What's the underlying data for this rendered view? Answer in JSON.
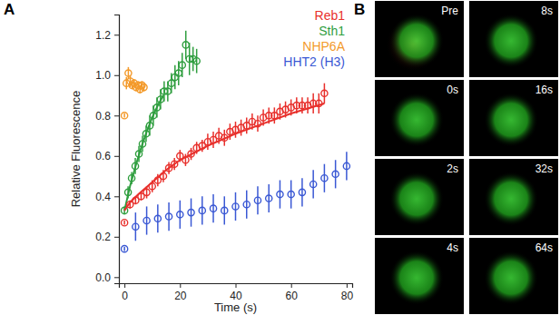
{
  "chart_data": {
    "type": "scatter",
    "panel_label": "A",
    "x_label": "Time (s)",
    "y_label": "Relative Fluorescence",
    "xlim": [
      -2,
      82
    ],
    "ylim": [
      -0.03,
      1.3
    ],
    "xticks": [
      0,
      20,
      40,
      60,
      80
    ],
    "yticks": [
      {
        "value": 0,
        "label": "0.0"
      },
      0.2,
      0.4,
      0.6,
      0.8,
      {
        "value": 1,
        "label": "1.0"
      },
      1.2
    ],
    "legend": "upper-right",
    "grid": false,
    "marker": "circle-open",
    "series": [
      {
        "name": "Reb1",
        "color": "#e8302c",
        "x": [
          0,
          2,
          4,
          6,
          8,
          10,
          12,
          14,
          16,
          18,
          20,
          22,
          24,
          26,
          28,
          30,
          32,
          34,
          36,
          38,
          40,
          42,
          44,
          46,
          48,
          50,
          52,
          54,
          56,
          58,
          60,
          62,
          64,
          66,
          68,
          70,
          72
        ],
        "values": [
          0.27,
          0.36,
          0.38,
          0.4,
          0.42,
          0.45,
          0.48,
          0.5,
          0.54,
          0.56,
          0.6,
          0.58,
          0.61,
          0.64,
          0.65,
          0.67,
          0.68,
          0.7,
          0.69,
          0.72,
          0.73,
          0.74,
          0.75,
          0.77,
          0.76,
          0.79,
          0.8,
          0.8,
          0.82,
          0.83,
          0.84,
          0.85,
          0.85,
          0.85,
          0.86,
          0.86,
          0.91
        ],
        "errors": [
          0.01,
          0.02,
          0.02,
          0.02,
          0.03,
          0.03,
          0.03,
          0.03,
          0.03,
          0.03,
          0.03,
          0.03,
          0.03,
          0.03,
          0.03,
          0.04,
          0.04,
          0.04,
          0.04,
          0.04,
          0.04,
          0.04,
          0.04,
          0.04,
          0.04,
          0.04,
          0.04,
          0.04,
          0.04,
          0.04,
          0.04,
          0.04,
          0.04,
          0.04,
          0.05,
          0.05,
          0.05
        ],
        "fit": {
          "x": [
            0,
            2,
            5,
            10,
            15,
            20,
            30,
            40,
            50,
            60,
            72
          ],
          "values": [
            0.33,
            0.37,
            0.41,
            0.47,
            0.53,
            0.58,
            0.65,
            0.71,
            0.76,
            0.81,
            0.86
          ]
        }
      },
      {
        "name": "Sth1",
        "color": "#2f9e3f",
        "x": [
          0,
          1.3,
          2.6,
          3.9,
          5.2,
          6.5,
          7.8,
          9.1,
          10.4,
          11.7,
          13,
          14.3,
          15.6,
          16.9,
          18.2,
          19.5,
          20.8,
          22.1,
          23.4,
          24.7,
          26
        ],
        "values": [
          0.33,
          0.42,
          0.49,
          0.55,
          0.61,
          0.66,
          0.71,
          0.75,
          0.8,
          0.84,
          0.88,
          0.92,
          0.92,
          0.96,
          0.99,
          1.01,
          1.05,
          1.15,
          1.08,
          1.08,
          1.07
        ],
        "errors": [
          0.02,
          0.03,
          0.03,
          0.04,
          0.04,
          0.04,
          0.04,
          0.05,
          0.05,
          0.05,
          0.05,
          0.05,
          0.05,
          0.05,
          0.06,
          0.06,
          0.06,
          0.07,
          0.08,
          0.06,
          0.06
        ],
        "fit": {
          "x": [
            0,
            2,
            4,
            6,
            8,
            10,
            12,
            14
          ],
          "values": [
            0.33,
            0.45,
            0.55,
            0.64,
            0.72,
            0.79,
            0.85,
            0.9
          ]
        }
      },
      {
        "name": "NHP6A",
        "color": "#f39a2b",
        "x": [
          0,
          0.7,
          1.4,
          2.1,
          2.8,
          3.5,
          4.2,
          4.9,
          5.6,
          6.3,
          7
        ],
        "values": [
          0.8,
          0.96,
          1.01,
          0.97,
          0.95,
          0.96,
          0.94,
          0.95,
          0.93,
          0.95,
          0.94
        ],
        "errors": [
          0.01,
          0.03,
          0.03,
          0.03,
          0.02,
          0.02,
          0.02,
          0.02,
          0.02,
          0.02,
          0.02
        ]
      },
      {
        "name": "HHT2 (H3)",
        "color": "#3a58d4",
        "x": [
          0,
          4,
          8,
          12,
          16,
          20,
          24,
          28,
          32,
          36,
          40,
          44,
          48,
          52,
          56,
          60,
          64,
          68,
          72,
          76,
          80
        ],
        "values": [
          0.14,
          0.25,
          0.28,
          0.29,
          0.3,
          0.31,
          0.32,
          0.33,
          0.34,
          0.33,
          0.35,
          0.36,
          0.38,
          0.39,
          0.41,
          0.41,
          0.42,
          0.46,
          0.49,
          0.51,
          0.55
        ],
        "errors": [
          0.01,
          0.07,
          0.07,
          0.07,
          0.07,
          0.07,
          0.07,
          0.07,
          0.07,
          0.07,
          0.07,
          0.07,
          0.07,
          0.07,
          0.07,
          0.07,
          0.07,
          0.07,
          0.07,
          0.07,
          0.07
        ]
      }
    ]
  },
  "image_panel": {
    "panel_label": "B",
    "frames": [
      "Pre",
      "0s",
      "2s",
      "4s",
      "8s",
      "16s",
      "32s",
      "64s"
    ]
  }
}
